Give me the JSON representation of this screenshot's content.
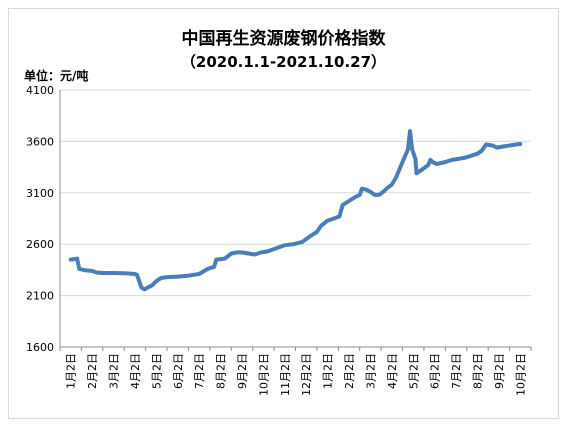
{
  "chart_data": {
    "type": "line",
    "title": "中国再生资源废钢价格指数",
    "subtitle": "（2020.1.1-2021.10.27）",
    "unit_label": "单位：元/吨",
    "ylim": [
      1600,
      4100
    ],
    "yticks": [
      1600,
      2100,
      2600,
      3100,
      3600,
      4100
    ],
    "grid": "horizontal",
    "line_color": "#4a7ebb",
    "x_tick_labels": [
      "1月2日",
      "2月2日",
      "3月2日",
      "4月2日",
      "5月2日",
      "6月2日",
      "7月2日",
      "8月2日",
      "9月2日",
      "10月2日",
      "11月2日",
      "12月2日",
      "1月2日",
      "2月2日",
      "3月2日",
      "4月2日",
      "5月2日",
      "6月2日",
      "7月2日",
      "8月2日",
      "9月2日",
      "10月2日"
    ],
    "series": [
      {
        "values": [
          [
            0,
            2450
          ],
          [
            0.15,
            2455
          ],
          [
            0.3,
            2460
          ],
          [
            0.4,
            2360
          ],
          [
            0.7,
            2345
          ],
          [
            1.0,
            2340
          ],
          [
            1.2,
            2325
          ],
          [
            1.5,
            2320
          ],
          [
            2.0,
            2320
          ],
          [
            2.5,
            2318
          ],
          [
            3.0,
            2310
          ],
          [
            3.1,
            2300
          ],
          [
            3.2,
            2240
          ],
          [
            3.3,
            2180
          ],
          [
            3.45,
            2160
          ],
          [
            3.6,
            2180
          ],
          [
            3.8,
            2200
          ],
          [
            4.0,
            2240
          ],
          [
            4.2,
            2270
          ],
          [
            4.5,
            2280
          ],
          [
            5.0,
            2285
          ],
          [
            5.5,
            2295
          ],
          [
            6.0,
            2310
          ],
          [
            6.4,
            2360
          ],
          [
            6.7,
            2380
          ],
          [
            6.8,
            2450
          ],
          [
            7.2,
            2460
          ],
          [
            7.5,
            2510
          ],
          [
            7.8,
            2520
          ],
          [
            8.0,
            2520
          ],
          [
            8.3,
            2510
          ],
          [
            8.6,
            2500
          ],
          [
            8.9,
            2520
          ],
          [
            9.2,
            2530
          ],
          [
            9.6,
            2560
          ],
          [
            10.0,
            2590
          ],
          [
            10.4,
            2600
          ],
          [
            10.8,
            2620
          ],
          [
            11.2,
            2680
          ],
          [
            11.5,
            2720
          ],
          [
            11.7,
            2780
          ],
          [
            12.0,
            2830
          ],
          [
            12.3,
            2850
          ],
          [
            12.55,
            2870
          ],
          [
            12.7,
            2980
          ],
          [
            13.0,
            3020
          ],
          [
            13.3,
            3060
          ],
          [
            13.5,
            3080
          ],
          [
            13.6,
            3140
          ],
          [
            13.8,
            3130
          ],
          [
            14.0,
            3110
          ],
          [
            14.2,
            3080
          ],
          [
            14.4,
            3080
          ],
          [
            14.6,
            3110
          ],
          [
            14.8,
            3150
          ],
          [
            15.0,
            3180
          ],
          [
            15.2,
            3250
          ],
          [
            15.5,
            3400
          ],
          [
            15.75,
            3520
          ],
          [
            15.85,
            3700
          ],
          [
            15.95,
            3520
          ],
          [
            16.1,
            3430
          ],
          [
            16.15,
            3290
          ],
          [
            16.3,
            3310
          ],
          [
            16.5,
            3340
          ],
          [
            16.7,
            3370
          ],
          [
            16.8,
            3420
          ],
          [
            16.9,
            3400
          ],
          [
            17.1,
            3380
          ],
          [
            17.5,
            3400
          ],
          [
            17.8,
            3420
          ],
          [
            18.1,
            3430
          ],
          [
            18.4,
            3440
          ],
          [
            18.7,
            3460
          ],
          [
            19.0,
            3480
          ],
          [
            19.2,
            3510
          ],
          [
            19.4,
            3570
          ],
          [
            19.7,
            3560
          ],
          [
            19.9,
            3540
          ],
          [
            20.2,
            3550
          ],
          [
            20.5,
            3560
          ],
          [
            20.8,
            3570
          ],
          [
            21.0,
            3575
          ]
        ]
      }
    ]
  }
}
